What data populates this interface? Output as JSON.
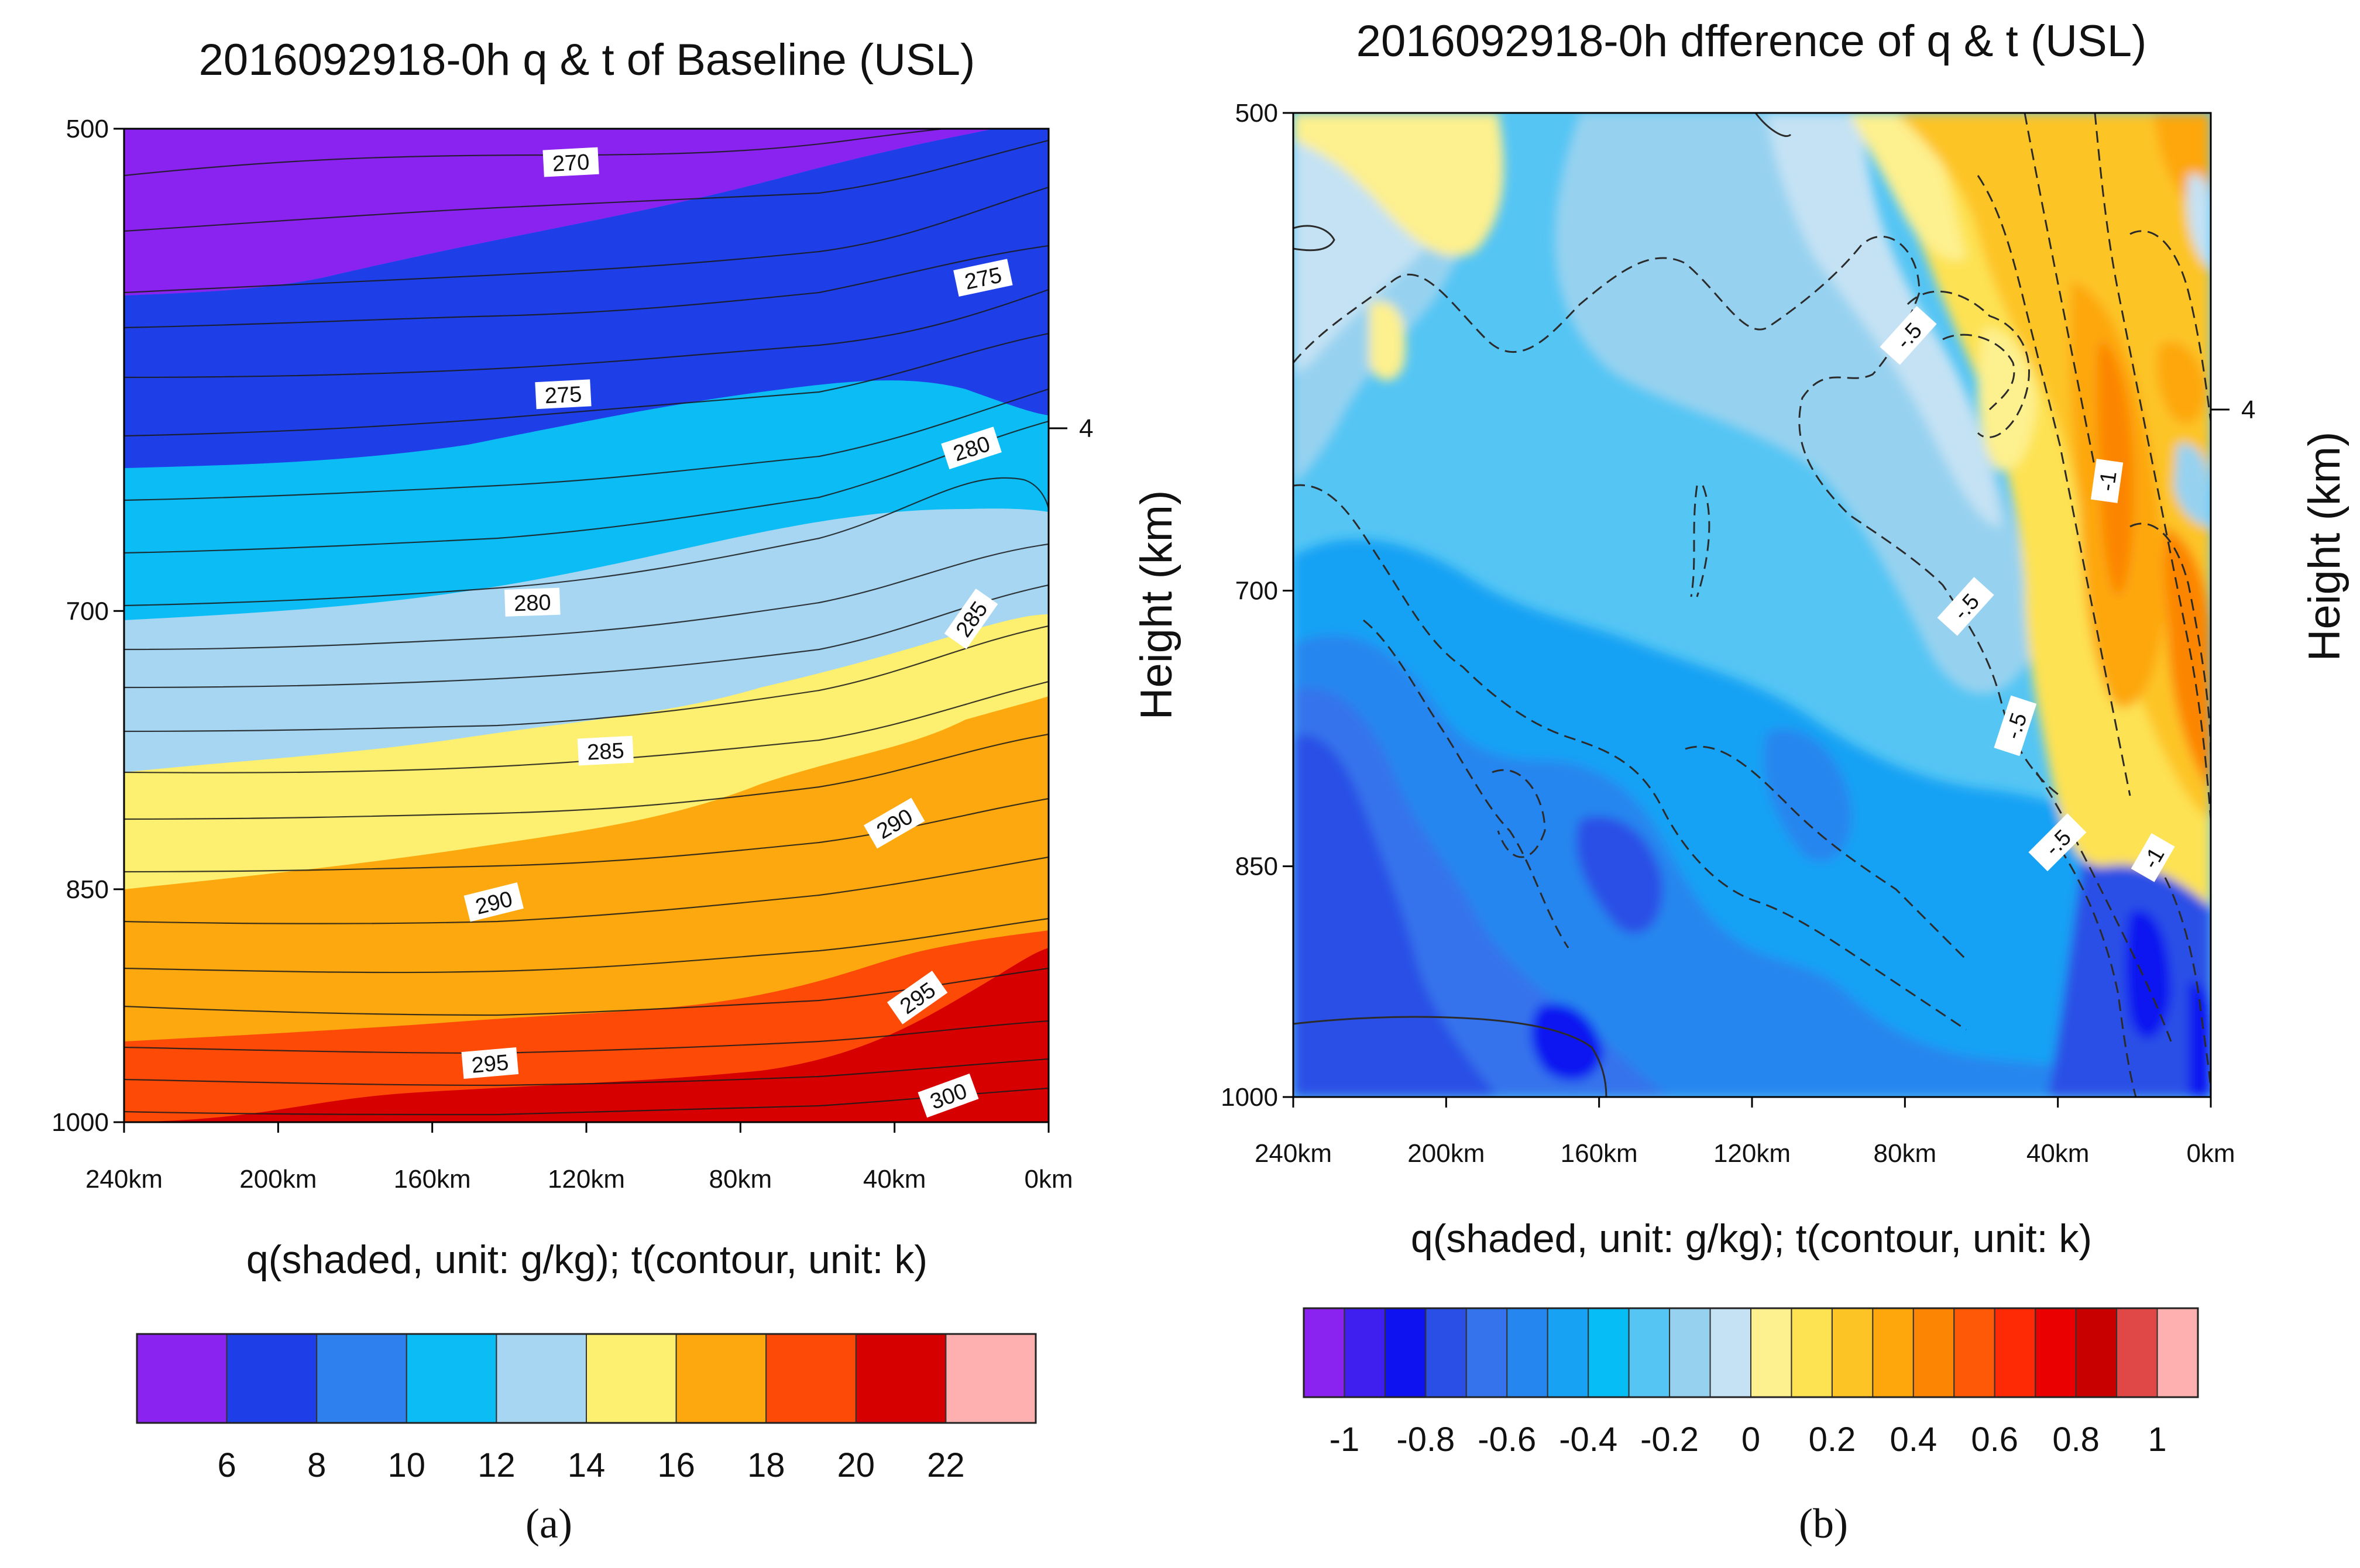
{
  "figure": {
    "panel_a_label": "(a)",
    "panel_b_label": "(b)"
  },
  "chart_data": [
    {
      "type": "heatmap",
      "title": "2016092918-0h q & t of Baseline (USL)",
      "caption": "q(shaded, unit: g/kg); t(contour, unit: k)",
      "xlabel": "",
      "ylabel": "",
      "x_ticks": [
        "240km",
        "200km",
        "160km",
        "120km",
        "80km",
        "40km",
        "0km"
      ],
      "x_values_km": [
        240,
        200,
        160,
        120,
        80,
        40,
        0
      ],
      "xlim": [
        240,
        0
      ],
      "y_ticks": [
        "500",
        "700",
        "850",
        "1000"
      ],
      "y_values_hpa": [
        500,
        700,
        850,
        1000
      ],
      "ylim": [
        1000,
        500
      ],
      "right_axis_ticks": [
        "4"
      ],
      "colorbar": {
        "labels": [
          "6",
          "8",
          "10",
          "12",
          "14",
          "16",
          "18",
          "20",
          "22"
        ],
        "levels": [
          6,
          8,
          10,
          12,
          14,
          16,
          18,
          20,
          22
        ],
        "colors": [
          "#8a23f0",
          "#1e3fe8",
          "#2e80ee",
          "#0cbdf5",
          "#a6d6f2",
          "#fdef70",
          "#fca80e",
          "#fd4a07",
          "#d60000",
          "#feb0b0"
        ]
      },
      "contours": [
        {
          "label": "270",
          "value": 270,
          "x_km": 124,
          "y_hpa": 512
        },
        {
          "label": "275",
          "value": 275,
          "x_km": 126,
          "y_hpa": 602
        },
        {
          "label": "275",
          "value": 275,
          "x_km": 17,
          "y_hpa": 555
        },
        {
          "label": "280",
          "value": 280,
          "x_km": 134,
          "y_hpa": 696
        },
        {
          "label": "280",
          "value": 280,
          "x_km": 20,
          "y_hpa": 625
        },
        {
          "label": "285",
          "value": 285,
          "x_km": 115,
          "y_hpa": 772
        },
        {
          "label": "285",
          "value": 285,
          "x_km": 20,
          "y_hpa": 704
        },
        {
          "label": "290",
          "value": 290,
          "x_km": 144,
          "y_hpa": 858
        },
        {
          "label": "290",
          "value": 290,
          "x_km": 40,
          "y_hpa": 812
        },
        {
          "label": "295",
          "value": 295,
          "x_km": 145,
          "y_hpa": 960
        },
        {
          "label": "295",
          "value": 295,
          "x_km": 34,
          "y_hpa": 917
        },
        {
          "label": "300",
          "value": 300,
          "x_km": 26,
          "y_hpa": 982
        }
      ]
    },
    {
      "type": "heatmap",
      "title": "2016092918-0h dfference of q & t  (USL)",
      "caption": "q(shaded, unit: g/kg); t(contour, unit: k)",
      "xlabel": "",
      "ylabel": "Height (km)",
      "right_ylabel": "Height (km)",
      "x_ticks": [
        "240km",
        "200km",
        "160km",
        "120km",
        "80km",
        "40km",
        "0km"
      ],
      "x_values_km": [
        240,
        200,
        160,
        120,
        80,
        40,
        0
      ],
      "xlim": [
        240,
        0
      ],
      "y_ticks": [
        "500",
        "700",
        "850",
        "1000"
      ],
      "y_values_hpa": [
        500,
        700,
        850,
        1000
      ],
      "ylim": [
        1000,
        500
      ],
      "right_axis_ticks": [
        "4"
      ],
      "colorbar": {
        "labels": [
          "-1",
          "-0.8",
          "-0.6",
          "-0.4",
          "-0.2",
          "0",
          "0.2",
          "0.4",
          "0.6",
          "0.8",
          "1"
        ],
        "levels": [
          -1,
          -0.8,
          -0.6,
          -0.4,
          -0.2,
          0,
          0.2,
          0.4,
          0.6,
          0.8,
          1
        ],
        "colors": [
          "#8a23f0",
          "#3f1ef0",
          "#0f12f0",
          "#2a4fe6",
          "#3573ec",
          "#2686ef",
          "#18a2f4",
          "#06bdf6",
          "#55c5f4",
          "#96d2f0",
          "#c4e2f4",
          "#fdf08e",
          "#fde252",
          "#fdc426",
          "#fda70c",
          "#fc8504",
          "#fd5906",
          "#fd2a05",
          "#ea0000",
          "#c80000",
          "#e04848",
          "#feb0b0"
        ]
      },
      "contours": [
        {
          "label": "-.5",
          "value": -0.5,
          "x_km": 79,
          "y_hpa": 585
        },
        {
          "label": "-.5",
          "value": -0.5,
          "x_km": 64,
          "y_hpa": 708
        },
        {
          "label": "-.5",
          "value": -0.5,
          "x_km": 51,
          "y_hpa": 770
        },
        {
          "label": "-.5",
          "value": -0.5,
          "x_km": 40,
          "y_hpa": 836
        },
        {
          "label": "-1",
          "value": -1,
          "x_km": 27,
          "y_hpa": 648
        },
        {
          "label": "-1",
          "value": -1,
          "x_km": 15,
          "y_hpa": 845
        }
      ]
    }
  ]
}
